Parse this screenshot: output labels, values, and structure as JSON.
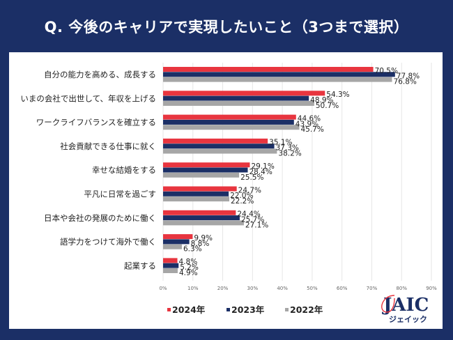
{
  "header": {
    "title": "Q. 今後のキャリアで実現したいこと（3つまで選択）"
  },
  "logo": {
    "main": "JAIC",
    "sub": "ジェイック",
    "accent_color": "#e8353f"
  },
  "colors": {
    "background": "#1b2f66",
    "panel": "#ffffff",
    "grid": "#e6e6e6"
  },
  "chart_data": {
    "type": "bar",
    "orientation": "horizontal",
    "title": "Q. 今後のキャリアで実現したいこと（3つまで選択）",
    "xlabel": "",
    "ylabel": "",
    "xlim": [
      0,
      90
    ],
    "x_ticks": [
      0,
      10,
      20,
      30,
      40,
      50,
      60,
      70,
      80,
      90
    ],
    "x_tick_labels": [
      "0%",
      "10%",
      "20%",
      "30%",
      "40%",
      "50%",
      "60%",
      "70%",
      "80%",
      "90%"
    ],
    "grid": true,
    "legend_position": "bottom",
    "categories": [
      "自分の能力を高める、成長する",
      "いまの会社で出世して、年収を上げる",
      "ワークライフバランスを確立する",
      "社会貢献できる仕事に就く",
      "幸せな結婚をする",
      "平凡に日常を過ごす",
      "日本や会社の発展のために働く",
      "語学力をつけて海外で働く",
      "起業する"
    ],
    "series": [
      {
        "name": "2024年",
        "color": "#e8353f",
        "values": [
          70.5,
          54.3,
          44.6,
          35.1,
          29.1,
          24.7,
          24.4,
          9.9,
          4.8
        ]
      },
      {
        "name": "2023年",
        "color": "#1b2f66",
        "values": [
          77.8,
          48.9,
          43.9,
          37.3,
          28.4,
          22.0,
          25.7,
          8.8,
          5.2
        ]
      },
      {
        "name": "2022年",
        "color": "#a6a6a6",
        "values": [
          76.8,
          50.7,
          45.7,
          38.2,
          25.5,
          22.2,
          27.1,
          6.3,
          4.9
        ]
      }
    ],
    "value_suffix": "%"
  }
}
